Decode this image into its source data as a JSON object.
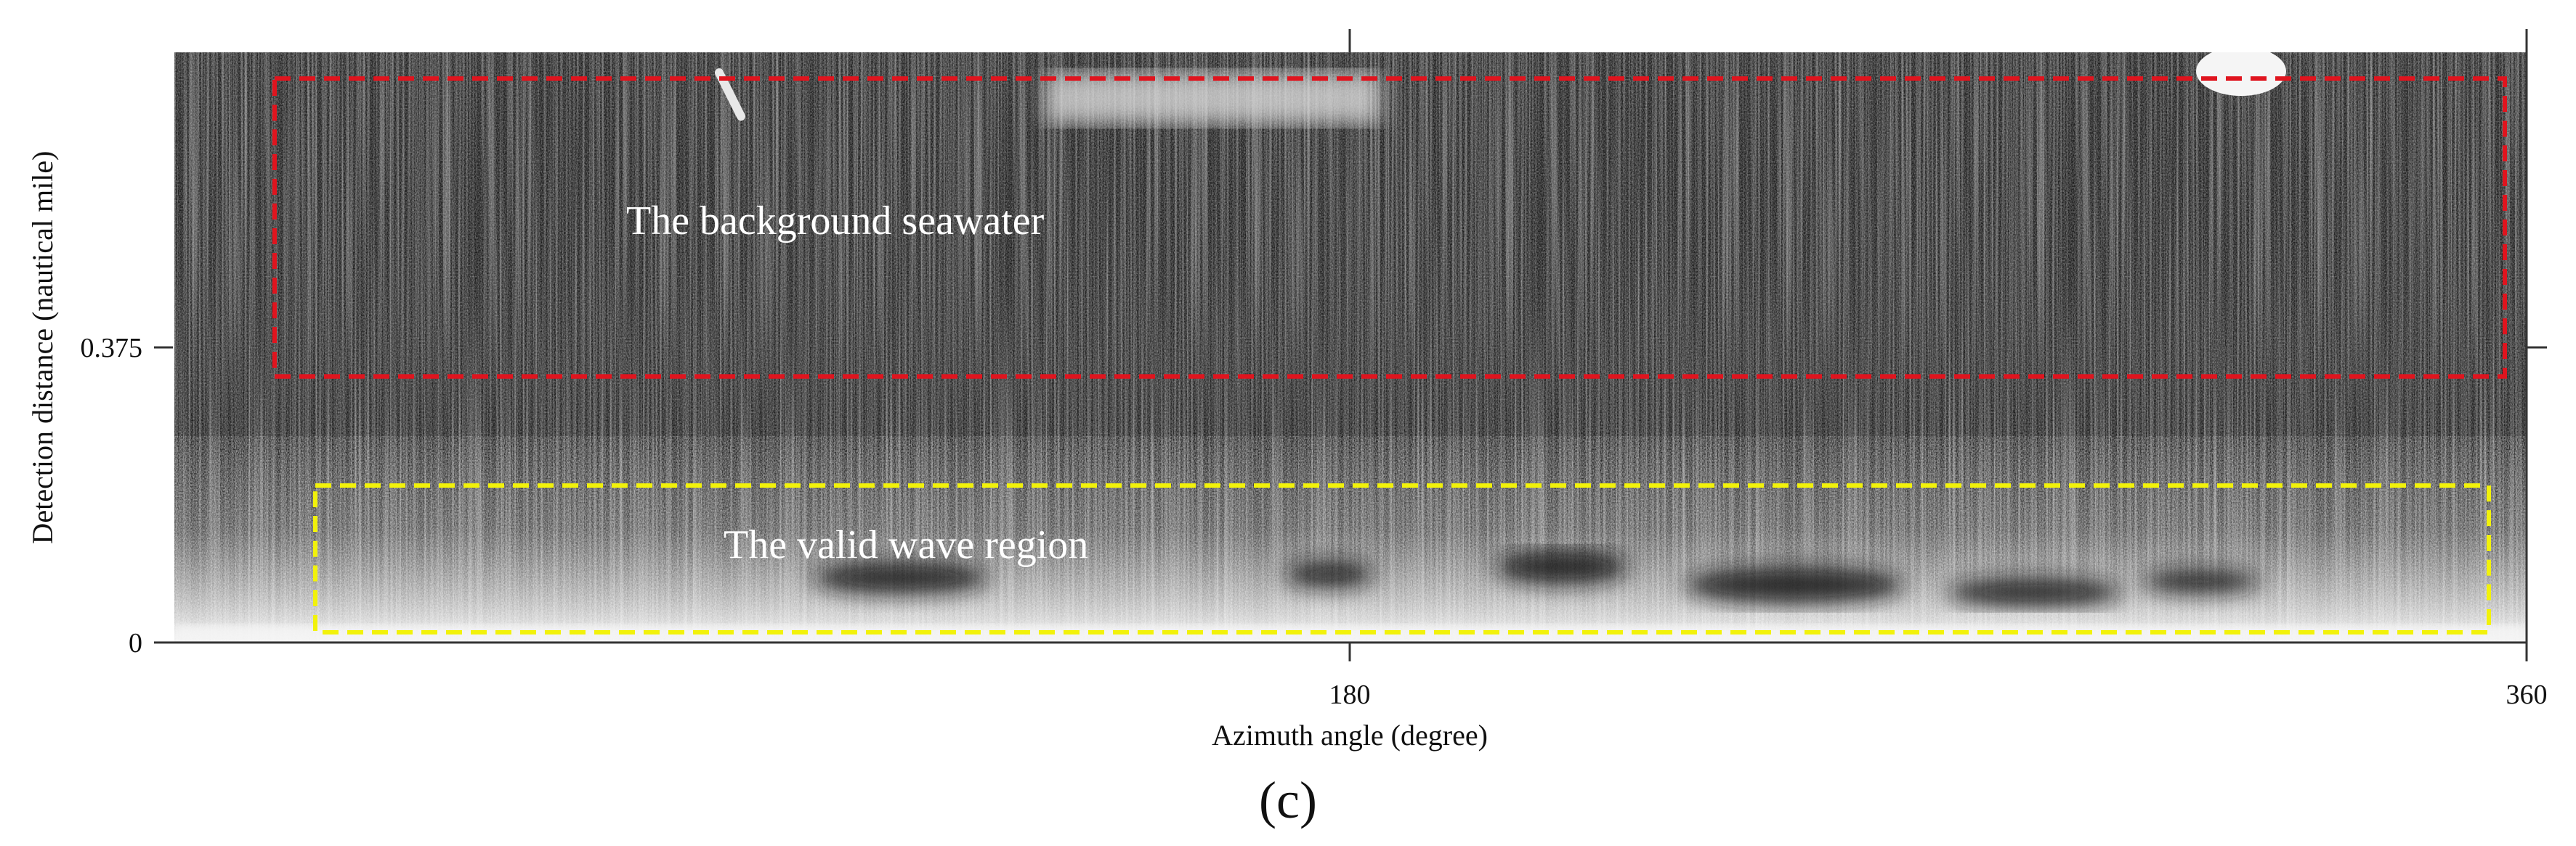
{
  "figure": {
    "panel_label": "(c)",
    "xlabel": "Azimuth angle (degree)",
    "ylabel": "Detection distance (nautical mile)",
    "xticks": [
      "180",
      "360"
    ],
    "yticks": [
      "0",
      "0.375"
    ],
    "xlim": [
      0,
      360
    ],
    "ylim": [
      0,
      0.75
    ]
  },
  "annotations": {
    "background_label": "The background seawater",
    "wave_label": "The valid wave region",
    "background_box_color": "#e0141e",
    "wave_box_color": "#f2f20a"
  }
}
